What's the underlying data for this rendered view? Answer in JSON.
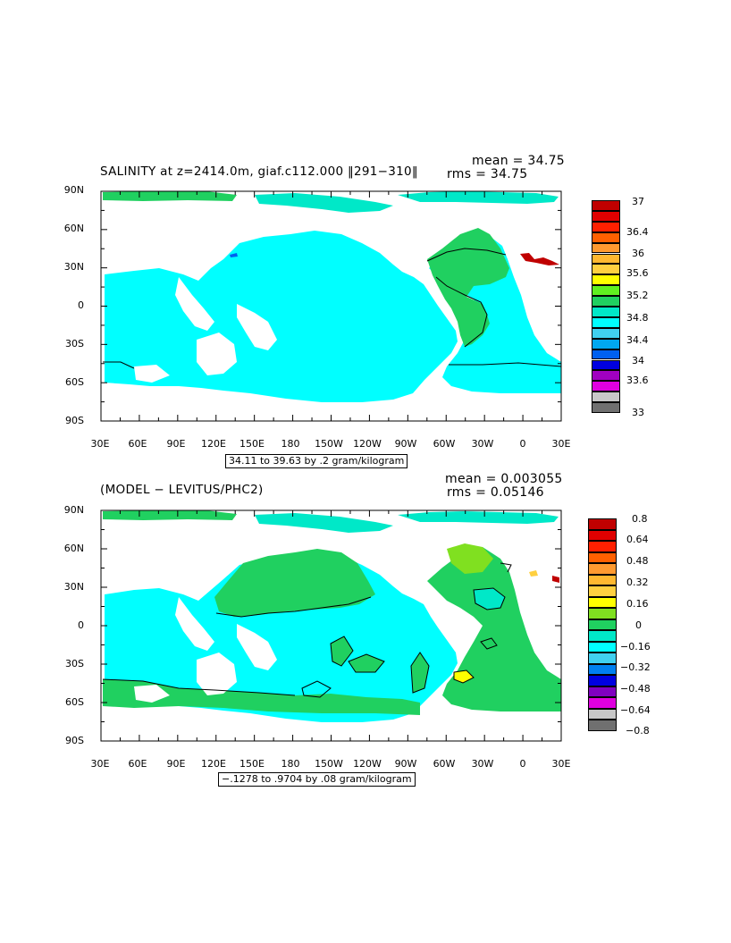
{
  "colors": {
    "land": "#ffffff",
    "contour": "#000000",
    "frame": "#000000"
  },
  "panels": [
    {
      "id": "salinity",
      "title": "SALINITY at z=2414.0m, giaf.c112.000 ‖291−310‖",
      "mean": "mean = 34.75",
      "rms": "rms = 34.75",
      "range_label": "34.11 to 39.63 by .2 gram/kilogram",
      "colorbar": {
        "colors": [
          "#c00000",
          "#e00000",
          "#ff2000",
          "#ff6000",
          "#ff9a30",
          "#ffb830",
          "#ffd040",
          "#ffff00",
          "#60f020",
          "#20d060",
          "#00e8c8",
          "#00ffff",
          "#40d0f0",
          "#00a8f0",
          "#0060f0",
          "#0000e0",
          "#a000c0",
          "#e000e0",
          "#c8c8c8",
          "#707070"
        ],
        "labels": [
          "37",
          "36.4",
          "36",
          "35.6",
          "35.2",
          "34.8",
          "34.4",
          "34",
          "33.6",
          "33"
        ]
      }
    },
    {
      "id": "difference",
      "title": "(MODEL − LEVITUS/PHC2)",
      "mean": "mean = 0.003055",
      "rms": "rms = 0.05146",
      "range_label": "−.1278 to .9704 by .08 gram/kilogram",
      "colorbar": {
        "colors": [
          "#c00000",
          "#e00000",
          "#ff2000",
          "#ff6000",
          "#ff9a30",
          "#ffb830",
          "#ffd040",
          "#ffff00",
          "#80e020",
          "#20d060",
          "#00e8c8",
          "#00ffff",
          "#40d0f0",
          "#0080f0",
          "#0000e0",
          "#8000c0",
          "#e000e0",
          "#c8c8c8",
          "#707070"
        ],
        "labels": [
          "0.8",
          "0.64",
          "0.48",
          "0.32",
          "0.16",
          "0",
          "−0.16",
          "−0.32",
          "−0.48",
          "−0.64",
          "−0.8"
        ]
      }
    }
  ],
  "axes": {
    "y_labels": [
      "90N",
      "60N",
      "30N",
      "0",
      "30S",
      "60S",
      "90S"
    ],
    "x_labels": [
      "30E",
      "60E",
      "90E",
      "120E",
      "150E",
      "180",
      "150W",
      "120W",
      "90W",
      "60W",
      "30W",
      "0",
      "30E"
    ]
  }
}
